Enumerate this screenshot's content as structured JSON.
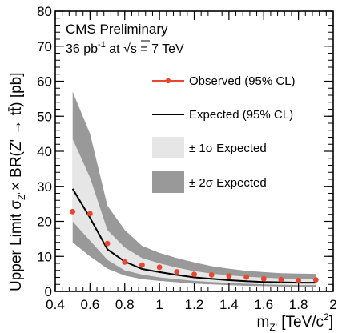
{
  "chart_data": {
    "type": "line",
    "header": {
      "line1": "CMS Preliminary",
      "lumi_value": "36 pb",
      "lumi_exp": "-1",
      "lumi_at": " at ",
      "sqrt_sym": "√",
      "energy": "s = 7 TeV"
    },
    "xlabel": "m",
    "xlabel_sub": "Z'",
    "xlabel_unit": " [TeV/c",
    "xlabel_exp": "2",
    "xlabel_close": "]",
    "ylabel": "Upper Limit σ",
    "ylabel_sub": "Z'",
    "ylabel_rest": "× BR(Z' → tt̄) [pb]",
    "xlim": [
      0.4,
      2.0
    ],
    "ylim": [
      0,
      80
    ],
    "x_ticks": [
      0.4,
      0.6,
      0.8,
      1.0,
      1.2,
      1.4,
      1.6,
      1.8,
      2.0
    ],
    "x_tick_labels": [
      "0.4",
      "0.6",
      "0.8",
      "1",
      "1.2",
      "1.4",
      "1.6",
      "1.8",
      "2"
    ],
    "y_ticks": [
      0,
      10,
      20,
      30,
      40,
      50,
      60,
      70,
      80
    ],
    "y_tick_labels": [
      "0",
      "10",
      "20",
      "30",
      "40",
      "50",
      "60",
      "70",
      "80"
    ],
    "legend_position": "top-right",
    "legend": {
      "observed": "Observed (95% CL)",
      "expected": "Expected (95% CL)",
      "one_sigma": "± 1σ Expected",
      "two_sigma": "± 2σ Expected"
    },
    "colors": {
      "observed": "#e8472f",
      "expected": "#000000",
      "one_sigma": "#e6e6e6",
      "two_sigma": "#999999"
    },
    "x": [
      0.5,
      0.6,
      0.7,
      0.8,
      0.9,
      1.0,
      1.1,
      1.2,
      1.3,
      1.4,
      1.5,
      1.6,
      1.7,
      1.8,
      1.9
    ],
    "series": [
      {
        "name": "Observed (95% CL)",
        "values": [
          22.8,
          22.2,
          13.7,
          8.4,
          7.5,
          6.9,
          5.6,
          4.9,
          4.7,
          4.4,
          4.1,
          3.6,
          3.4,
          3.1,
          3.3
        ]
      },
      {
        "name": "Expected (95% CL)",
        "values": [
          29.3,
          21.0,
          12.0,
          8.5,
          6.4,
          5.5,
          4.7,
          4.0,
          3.6,
          3.2,
          2.9,
          2.7,
          2.6,
          2.5,
          2.5
        ]
      },
      {
        "name": "± 1σ Expected",
        "lower": [
          20.0,
          14.5,
          9.0,
          6.0,
          4.8,
          4.0,
          3.5,
          3.0,
          2.7,
          2.4,
          2.2,
          2.0,
          1.9,
          1.8,
          1.8
        ],
        "upper": [
          43.5,
          32.5,
          17.5,
          12.5,
          9.5,
          8.0,
          6.8,
          5.8,
          5.1,
          4.6,
          4.2,
          3.9,
          3.7,
          3.6,
          3.6
        ]
      },
      {
        "name": "± 2σ Expected",
        "lower": [
          14.0,
          10.0,
          6.5,
          4.5,
          3.5,
          3.0,
          2.6,
          2.2,
          2.0,
          1.8,
          1.6,
          1.5,
          1.4,
          1.35,
          1.35
        ],
        "upper": [
          57.0,
          45.0,
          24.5,
          17.5,
          13.0,
          11.0,
          9.5,
          8.3,
          7.2,
          6.5,
          5.9,
          5.5,
          5.2,
          5.1,
          5.0
        ]
      }
    ]
  }
}
